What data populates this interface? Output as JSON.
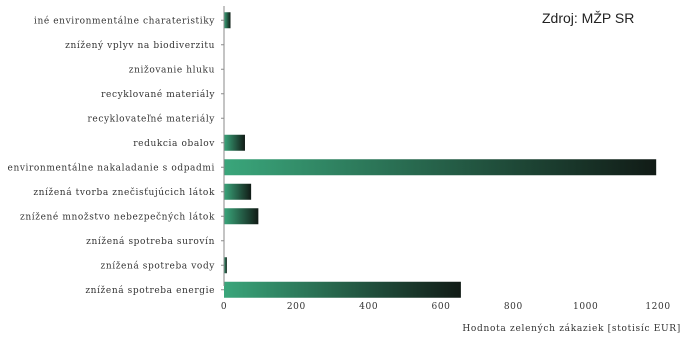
{
  "source_note": "Zdroj: MŽP SR",
  "chart_data": {
    "type": "bar",
    "orientation": "horizontal",
    "title": "",
    "xlabel": "Hodnota zelených zákaziek [stotisíc EUR]",
    "ylabel": "",
    "xlim": [
      0,
      1200
    ],
    "xticks": [
      0,
      200,
      400,
      600,
      800,
      1000,
      1200
    ],
    "categories": [
      "iné environmentálne charateristiky",
      "znížený vplyv na biodiverzitu",
      "znižovanie hluku",
      "recyklované materiály",
      "recyklovateľné materiály",
      "redukcia obalov",
      "environmentálne nakaladanie s odpadmi",
      "znížená tvorba znečisťujúcich látok",
      "znížené množstvo nebezpečných látok",
      "znížená spotreba surovín",
      "znížená spotreba vody",
      "znížená spotreba energie"
    ],
    "values": [
      18,
      0,
      0,
      0,
      0,
      58,
      1195,
      75,
      95,
      0,
      8,
      655
    ],
    "bar_colors": {
      "light": "#3aa67b",
      "dark": "#111b16"
    },
    "axis_color": "#8a8a8a",
    "grid": false,
    "legend": "none"
  }
}
